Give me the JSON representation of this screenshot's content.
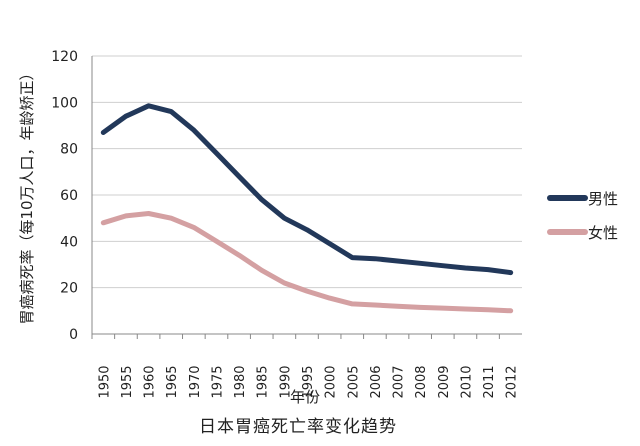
{
  "chart_data": {
    "type": "line",
    "title": "日本胃癌死亡率变化趋势",
    "xlabel": "年份",
    "ylabel": "胃癌病死率（每10万人口，年龄矫正）",
    "ylim": [
      0,
      120
    ],
    "yticks": [
      0,
      20,
      40,
      60,
      80,
      100,
      120
    ],
    "categories": [
      "1950",
      "1955",
      "1960",
      "1965",
      "1970",
      "1975",
      "1980",
      "1985",
      "1990",
      "1995",
      "2000",
      "2005",
      "2006",
      "2007",
      "2008",
      "2009",
      "2010",
      "2011",
      "2012"
    ],
    "grid": true,
    "legend_position": "right",
    "series": [
      {
        "name": "男性",
        "color": "#22385a",
        "values": [
          87,
          94,
          98.5,
          96,
          88,
          78,
          68,
          58,
          50,
          45,
          39,
          33,
          32.5,
          31.5,
          30.5,
          29.5,
          28.5,
          27.8,
          26.5
        ]
      },
      {
        "name": "女性",
        "color": "#d4a0a2",
        "values": [
          48,
          51,
          52,
          50,
          46,
          40,
          34,
          27.5,
          22,
          18.5,
          15.5,
          13,
          12.5,
          12,
          11.5,
          11.2,
          10.8,
          10.5,
          10
        ]
      }
    ]
  }
}
